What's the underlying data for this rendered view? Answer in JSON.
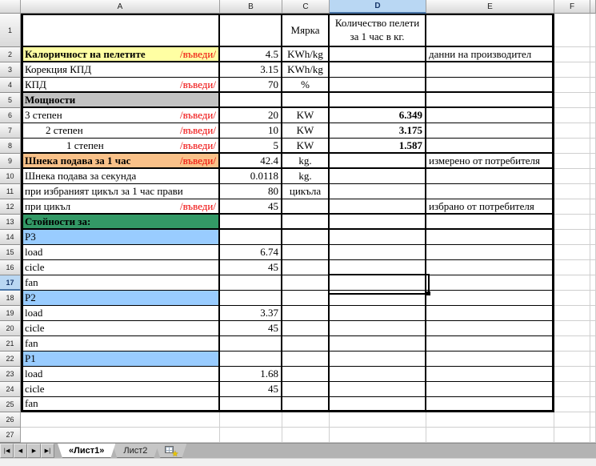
{
  "colors": {
    "highlight_yellow": "#ffffa3",
    "highlight_orange": "#f9c189",
    "highlight_gray": "#c3c3c3",
    "highlight_green": "#339966",
    "highlight_blue": "#99ccff",
    "input_red": "#ee0000",
    "selected_header": "#b9d7f3"
  },
  "sheet": {
    "col_headers": [
      "A",
      "B",
      "C",
      "D",
      "E",
      "F"
    ],
    "selected_column": "D",
    "selected_row": 17,
    "visible_rows": 27,
    "rows": [
      {
        "n": 1,
        "a": "",
        "b": "",
        "c": "Мярка",
        "d": "Количество пелети за 1 час в кг.",
        "e": ""
      },
      {
        "n": 2,
        "a": "Калоричност на пелетите",
        "input": "/въведи/",
        "bold": true,
        "bg": "yellow",
        "b": "4.5",
        "c": "KWh/kg",
        "e": "данни на производител"
      },
      {
        "n": 3,
        "a": "Корекция КПД",
        "b": "3.15",
        "c": "KWh/kg"
      },
      {
        "n": 4,
        "a": "КПД",
        "input": "/въведи/",
        "b": "70",
        "c": "%"
      },
      {
        "n": 5,
        "a": "Мощности",
        "bold": true,
        "bg": "gray"
      },
      {
        "n": 6,
        "a": "3 степен",
        "input": "/въведи/",
        "b": "20",
        "c": "KW",
        "d": "6.349",
        "d_bold": true
      },
      {
        "n": 7,
        "a": "2 степен",
        "indent": 1,
        "input": "/въведи/",
        "b": "10",
        "c": "KW",
        "d": "3.175",
        "d_bold": true
      },
      {
        "n": 8,
        "a": "1 степен",
        "indent": 2,
        "input": "/въведи/",
        "b": "5",
        "c": "KW",
        "d": "1.587",
        "d_bold": true
      },
      {
        "n": 9,
        "a": "Шнека подава за 1 час",
        "input": "/въведи/",
        "bold": true,
        "bg": "orange",
        "b": "42.4",
        "c": "kg.",
        "e": "измерено от потребителя"
      },
      {
        "n": 10,
        "a": "Шнека подава за секунда",
        "b": "0.0118",
        "c": "kg."
      },
      {
        "n": 11,
        "a": "при избраният цикъл за 1 час прави",
        "b": "80",
        "c": "цикъла"
      },
      {
        "n": 12,
        "a": "при цикъл",
        "input": "/въведи/",
        "b": "45",
        "e": "избрано от потребителя"
      },
      {
        "n": 13,
        "a": "Стойности за:",
        "bold": true,
        "bg": "green"
      },
      {
        "n": 14,
        "a": "P3",
        "bg": "blue"
      },
      {
        "n": 15,
        "a": "load",
        "b": "6.74"
      },
      {
        "n": 16,
        "a": "cicle",
        "b": "45"
      },
      {
        "n": 17,
        "a": "fan"
      },
      {
        "n": 18,
        "a": "P2",
        "bg": "blue"
      },
      {
        "n": 19,
        "a": "load",
        "b": "3.37"
      },
      {
        "n": 20,
        "a": "cicle",
        "b": "45"
      },
      {
        "n": 21,
        "a": "fan"
      },
      {
        "n": 22,
        "a": "P1",
        "bg": "blue"
      },
      {
        "n": 23,
        "a": "load",
        "b": "1.68"
      },
      {
        "n": 24,
        "a": "cicle",
        "b": "45"
      },
      {
        "n": 25,
        "a": "fan"
      },
      {
        "n": 26
      },
      {
        "n": 27
      }
    ]
  },
  "tabbar": {
    "nav": [
      {
        "name": "first-sheet",
        "glyph": "|◀"
      },
      {
        "name": "previous-sheet",
        "glyph": "◀"
      },
      {
        "name": "next-sheet",
        "glyph": "▶"
      },
      {
        "name": "last-sheet",
        "glyph": "▶|"
      }
    ],
    "sheets": [
      {
        "label": "«Лист1»",
        "active": true
      },
      {
        "label": "Лист2",
        "active": false
      }
    ]
  }
}
